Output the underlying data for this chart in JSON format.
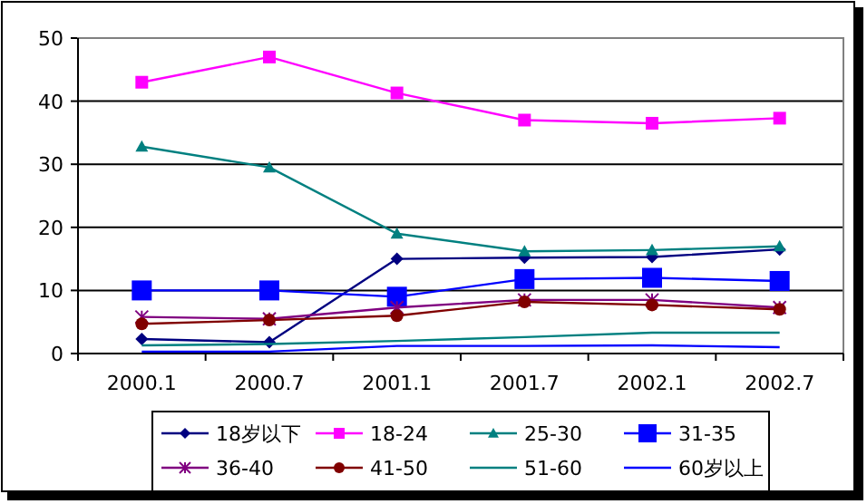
{
  "chart_data": {
    "type": "line",
    "categories": [
      "2000.1",
      "2000.7",
      "2001.1",
      "2001.7",
      "2002.1",
      "2002.7"
    ],
    "ylim": [
      0,
      50
    ],
    "yticks": [
      0,
      10,
      20,
      30,
      40,
      50
    ],
    "grid": "y",
    "legend": "bottom",
    "series": [
      {
        "name": "18岁以下",
        "color": "#000080",
        "marker": "diamond",
        "values": [
          2.3,
          1.8,
          15,
          15.2,
          15.3,
          16.5
        ]
      },
      {
        "name": "18-24",
        "color": "#ff00ff",
        "marker": "square",
        "values": [
          43,
          47,
          41.3,
          37,
          36.5,
          37.3
        ]
      },
      {
        "name": "25-30",
        "color": "#008080",
        "marker": "triangle",
        "values": [
          32.8,
          29.5,
          19,
          16.2,
          16.4,
          17
        ]
      },
      {
        "name": "31-35",
        "color": "#0000ff",
        "marker": "square",
        "values": [
          10,
          10,
          9,
          11.8,
          12,
          11.5
        ]
      },
      {
        "name": "36-40",
        "color": "#800080",
        "marker": "cross",
        "values": [
          5.8,
          5.5,
          7.3,
          8.5,
          8.5,
          7.3
        ]
      },
      {
        "name": "41-50",
        "color": "#800000",
        "marker": "circle",
        "values": [
          4.7,
          5.3,
          6,
          8.2,
          7.7,
          7
        ]
      },
      {
        "name": "51-60",
        "color": "#008080",
        "marker": "none",
        "values": [
          1.3,
          1.5,
          2,
          2.6,
          3.3,
          3.3
        ]
      },
      {
        "name": "60岁以上",
        "color": "#0000ff",
        "marker": "none",
        "values": [
          0.3,
          0.3,
          1.2,
          1.2,
          1.3,
          1.0
        ]
      }
    ]
  }
}
